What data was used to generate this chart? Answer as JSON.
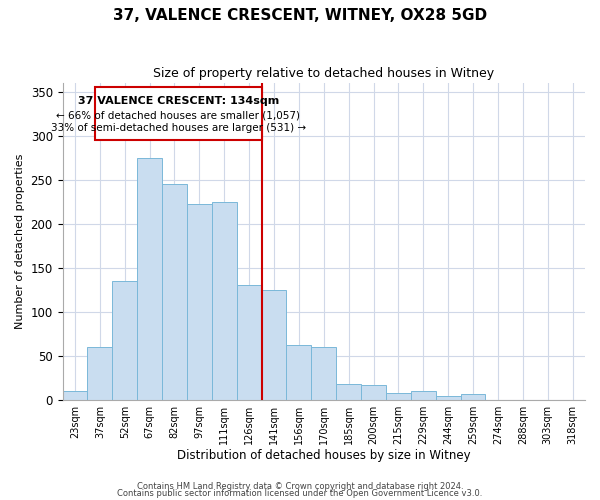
{
  "title": "37, VALENCE CRESCENT, WITNEY, OX28 5GD",
  "subtitle": "Size of property relative to detached houses in Witney",
  "xlabel": "Distribution of detached houses by size in Witney",
  "ylabel": "Number of detached properties",
  "bar_labels": [
    "23sqm",
    "37sqm",
    "52sqm",
    "67sqm",
    "82sqm",
    "97sqm",
    "111sqm",
    "126sqm",
    "141sqm",
    "156sqm",
    "170sqm",
    "185sqm",
    "200sqm",
    "215sqm",
    "229sqm",
    "244sqm",
    "259sqm",
    "274sqm",
    "288sqm",
    "303sqm",
    "318sqm"
  ],
  "bar_values": [
    10,
    60,
    135,
    275,
    245,
    222,
    225,
    130,
    125,
    62,
    60,
    18,
    17,
    8,
    10,
    4,
    6,
    0,
    0,
    0,
    0
  ],
  "bar_color": "#c9ddf0",
  "bar_edgecolor": "#7ab8d9",
  "vline_color": "#cc0000",
  "annotation_title": "37 VALENCE CRESCENT: 134sqm",
  "annotation_line1": "← 66% of detached houses are smaller (1,057)",
  "annotation_line2": "33% of semi-detached houses are larger (531) →",
  "annotation_box_edgecolor": "#cc0000",
  "annotation_bg": "#ffffff",
  "ylim": [
    0,
    360
  ],
  "yticks": [
    0,
    50,
    100,
    150,
    200,
    250,
    300,
    350
  ],
  "footer1": "Contains HM Land Registry data © Crown copyright and database right 2024.",
  "footer2": "Contains public sector information licensed under the Open Government Licence v3.0.",
  "background_color": "#ffffff",
  "grid_color": "#d0d8e8"
}
